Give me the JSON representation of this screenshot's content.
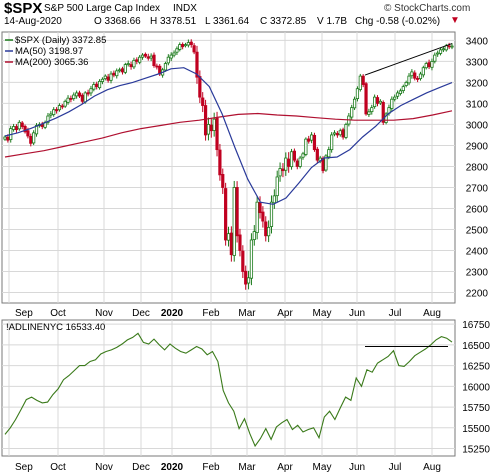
{
  "header": {
    "symbol": "$SPX",
    "name": "S&P 500 Large Cap Index",
    "exchange": "INDX",
    "brand": "© StockCharts.com",
    "date": "14-Aug-2020",
    "open": "O 3368.66",
    "high": "H 3378.51",
    "low": "L 3361.64",
    "close": "C 3372.85",
    "volume": "V 1.7B",
    "chg": "Chg -0.58 (-0.02%)",
    "down_marker": "▼"
  },
  "colors": {
    "up": "#1a7a1a",
    "down": "#c00020",
    "ma50": "#2a3a9a",
    "ma200": "#b01030",
    "breadth": "#3a7a1a",
    "grid": "#d8d8d8",
    "frame": "#7a7a7a"
  },
  "chart_data": [
    {
      "type": "candlestick",
      "legend": [
        {
          "label": "$SPX (Daily) 3372.85",
          "color": "#1a7a1a"
        },
        {
          "label": "MA(50) 3198.97",
          "color": "#2a3a9a"
        },
        {
          "label": "MA(200) 3065.36",
          "color": "#b01030"
        }
      ],
      "ylim": [
        2150,
        3440
      ],
      "yticks": [
        2200,
        2300,
        2400,
        2500,
        2600,
        2700,
        2800,
        2900,
        3000,
        3100,
        3200,
        3300,
        3400
      ],
      "xlabels": [
        "Sep",
        "Oct",
        "Nov",
        "Dec",
        "2020",
        "Feb",
        "Mar",
        "Apr",
        "May",
        "Jun",
        "Jul",
        "Aug"
      ],
      "close_series": [
        2940,
        2925,
        2980,
        2990,
        2975,
        3010,
        2990,
        2965,
        2945,
        2910,
        2960,
        2995,
        3000,
        2990,
        3010,
        3040,
        3050,
        3070,
        3065,
        3090,
        3085,
        3110,
        3125,
        3120,
        3140,
        3150,
        3135,
        3110,
        3150,
        3145,
        3170,
        3190,
        3180,
        3205,
        3215,
        3230,
        3210,
        3240,
        3235,
        3255,
        3260,
        3250,
        3285,
        3290,
        3275,
        3305,
        3300,
        3320,
        3330,
        3325,
        3315,
        3325,
        3280,
        3275,
        3240,
        3260,
        3290,
        3320,
        3330,
        3340,
        3360,
        3380,
        3370,
        3380,
        3390,
        3380,
        3345,
        3225,
        3130,
        3090,
        2950,
        3000,
        2970,
        3025,
        2880,
        2760,
        2700,
        2450,
        2480,
        2380,
        2700,
        2470,
        2400,
        2300,
        2240,
        2270,
        2450,
        2490,
        2630,
        2580,
        2540,
        2470,
        2510,
        2630,
        2660,
        2750,
        2790,
        2780,
        2840,
        2800,
        2870,
        2830,
        2800,
        2840,
        2860,
        2930,
        2920,
        2950,
        2880,
        2830,
        2840,
        2780,
        2850,
        2880,
        2950,
        2960,
        2950,
        2970,
        2940,
        3000,
        3040,
        3080,
        3120,
        3170,
        3230,
        3190,
        3050,
        3060,
        3080,
        3130,
        3100,
        3110,
        3010,
        3050,
        3080,
        3120,
        3130,
        3150,
        3160,
        3180,
        3200,
        3230,
        3250,
        3220,
        3215,
        3240,
        3270,
        3290,
        3275,
        3300,
        3330,
        3340,
        3355,
        3360,
        3375,
        3370,
        3373
      ],
      "ma50": [
        2945,
        2960,
        2980,
        3005,
        3030,
        3060,
        3095,
        3135,
        3165,
        3185,
        3200,
        3220,
        3240,
        3265,
        3270,
        3240,
        3180,
        3050,
        2890,
        2740,
        2630,
        2620,
        2650,
        2720,
        2795,
        2840,
        2845,
        2880,
        2940,
        2990,
        3050,
        3090,
        3120,
        3150,
        3175,
        3199
      ],
      "ma200": [
        2845,
        2860,
        2875,
        2895,
        2915,
        2935,
        2960,
        2980,
        2995,
        3010,
        3020,
        3035,
        3048,
        3052,
        3045,
        3040,
        3032,
        3025,
        3020,
        3020,
        3020,
        3028,
        3045,
        3065
      ],
      "trendline": {
        "from": [
          3235
        ],
        "to": [
          3385
        ]
      }
    },
    {
      "type": "line",
      "legend": [
        {
          "label": "!ADLINENYC 16533.40",
          "color": "#3a7a1a"
        }
      ],
      "ylim": [
        15160,
        16800
      ],
      "yticks": [
        15250,
        15500,
        15750,
        16000,
        16250,
        16500,
        16750
      ],
      "xlabels": [
        "Sep",
        "Oct",
        "Nov",
        "Dec",
        "2020",
        "Feb",
        "Mar",
        "Apr",
        "May",
        "Jun",
        "Jul",
        "Aug"
      ],
      "values": [
        15420,
        15500,
        15600,
        15720,
        15840,
        15870,
        15830,
        15800,
        15810,
        15900,
        15970,
        16080,
        16130,
        16190,
        16250,
        16250,
        16300,
        16320,
        16390,
        16420,
        16440,
        16470,
        16510,
        16560,
        16590,
        16640,
        16530,
        16510,
        16570,
        16500,
        16440,
        16510,
        16460,
        16420,
        16400,
        16440,
        16480,
        16450,
        16380,
        16420,
        16300,
        15950,
        15800,
        15700,
        15490,
        15610,
        15430,
        15280,
        15370,
        15490,
        15360,
        15510,
        15560,
        15600,
        15480,
        15530,
        15450,
        15480,
        15500,
        15380,
        15630,
        15700,
        15600,
        15740,
        15870,
        15830,
        16100,
        16000,
        16200,
        16170,
        16280,
        16320,
        16360,
        16430,
        16250,
        16240,
        16300,
        16370,
        16410,
        16450,
        16500,
        16560,
        16600,
        16580,
        16533
      ],
      "resistance": 16480
    }
  ]
}
